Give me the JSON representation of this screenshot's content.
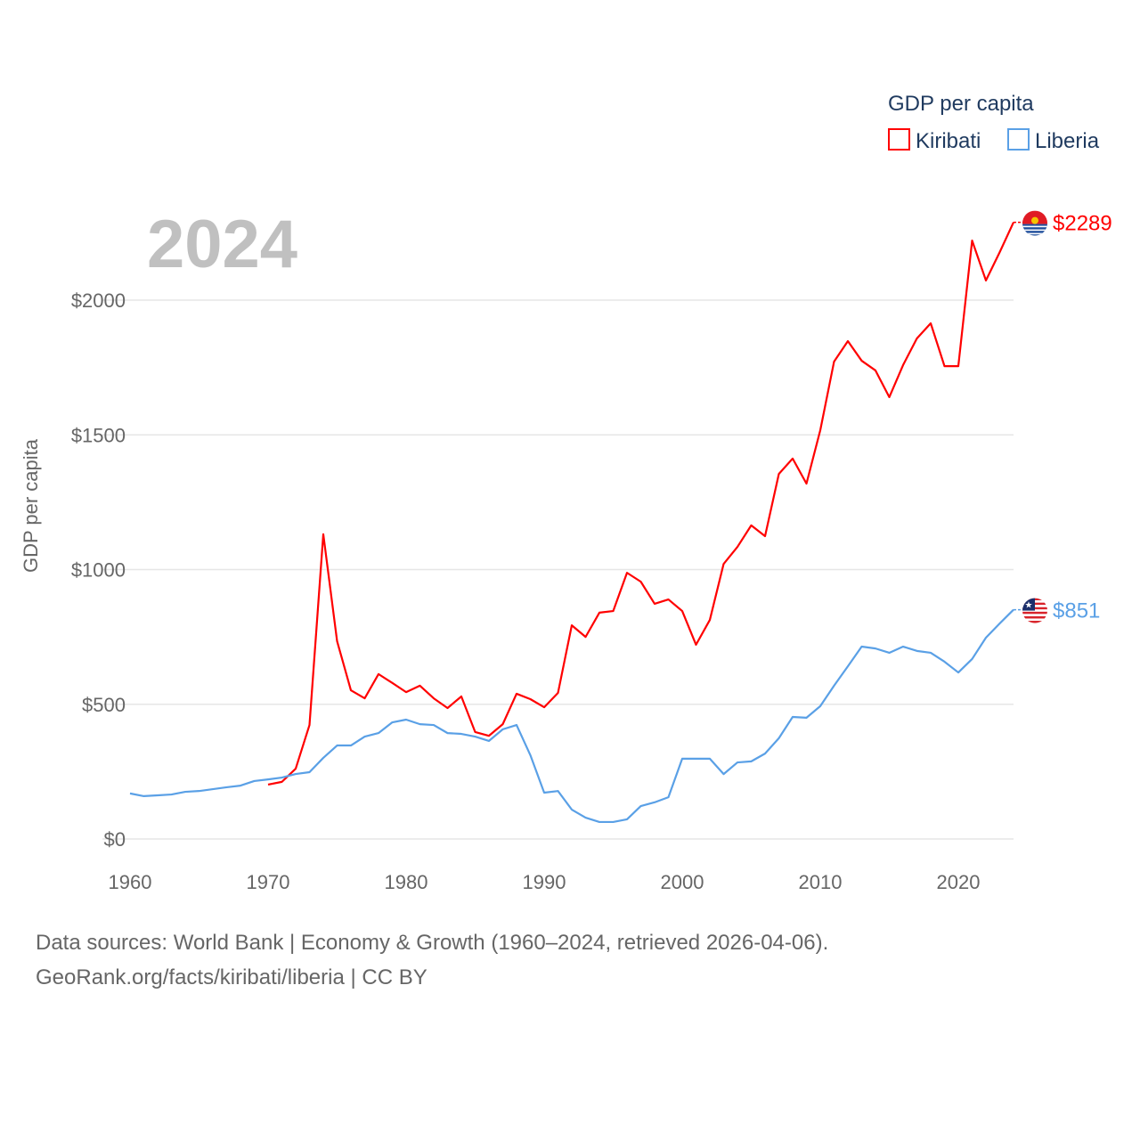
{
  "chart_data": {
    "type": "line",
    "title": "2024",
    "legend_title": "GDP per capita",
    "legend_placement": "top-right",
    "ylabel": "GDP per capita",
    "xlabel": "",
    "xlim": [
      1960,
      2024
    ],
    "ylim": [
      0,
      2300
    ],
    "x_ticks": [
      1960,
      1970,
      1980,
      1990,
      2000,
      2010,
      2020
    ],
    "x_tick_labels": [
      "1960",
      "1970",
      "1980",
      "1990",
      "2000",
      "2010",
      "2020"
    ],
    "y_ticks": [
      0,
      500,
      1000,
      1500,
      2000
    ],
    "y_tick_labels": [
      "$0",
      "$500",
      "$1000",
      "$1500",
      "$2000"
    ],
    "grid": true,
    "series": [
      {
        "name": "Kiribati",
        "color": "#ff0000",
        "end_label": "$2289",
        "start_year": 1970,
        "values": [
          202,
          212,
          261,
          423,
          1131,
          734,
          552,
          522,
          612,
          579,
          545,
          569,
          522,
          486,
          529,
          397,
          383,
          426,
          539,
          519,
          489,
          542,
          793,
          750,
          840,
          846,
          988,
          955,
          873,
          889,
          846,
          721,
          813,
          1021,
          1084,
          1164,
          1124,
          1355,
          1412,
          1319,
          1517,
          1772,
          1848,
          1775,
          1739,
          1640,
          1759,
          1858,
          1914,
          1755,
          1755,
          2221,
          2073,
          2178,
          2289
        ]
      },
      {
        "name": "Liberia",
        "color": "#5aa0e6",
        "end_label": "$851",
        "start_year": 1960,
        "values": [
          169,
          159,
          162,
          165,
          175,
          178,
          185,
          192,
          198,
          215,
          221,
          228,
          241,
          248,
          301,
          347,
          347,
          380,
          393,
          433,
          443,
          426,
          423,
          393,
          390,
          380,
          364,
          407,
          423,
          311,
          172,
          178,
          109,
          79,
          63,
          63,
          73,
          122,
          136,
          155,
          298,
          298,
          298,
          241,
          284,
          288,
          317,
          374,
          453,
          450,
          493,
          569,
          641,
          714,
          707,
          691,
          714,
          698,
          691,
          658,
          618,
          668,
          747,
          800,
          851
        ]
      }
    ]
  },
  "footer": {
    "line1": "Data sources: World Bank | Economy & Growth (1960–2024, retrieved 2026-04-06).",
    "line2": "GeoRank.org/facts/kiribati/liberia | CC BY"
  }
}
